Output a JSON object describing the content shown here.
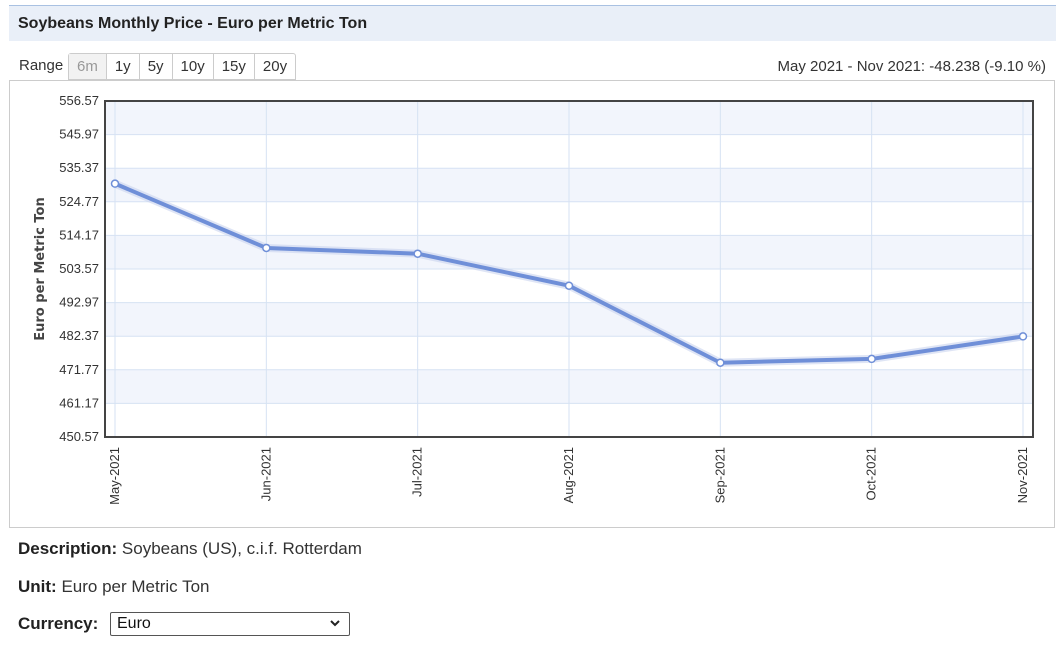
{
  "header": {
    "title": "Soybeans Monthly Price - Euro per Metric Ton"
  },
  "range": {
    "label": "Range",
    "options": [
      "6m",
      "1y",
      "5y",
      "10y",
      "15y",
      "20y"
    ],
    "active_index": 0,
    "summary": "May 2021 - Nov 2021: -48.238 (-9.10 %)"
  },
  "chart_data": {
    "type": "line",
    "ylabel": "Euro per Metric Ton",
    "x": [
      "May-2021",
      "Jun-2021",
      "Jul-2021",
      "Aug-2021",
      "Sep-2021",
      "Oct-2021",
      "Nov-2021"
    ],
    "series": [
      {
        "values": [
          530.5,
          510.2,
          508.4,
          498.3,
          474.0,
          475.2,
          482.3
        ]
      }
    ],
    "yticks": [
      "556.57",
      "545.97",
      "535.37",
      "524.77",
      "514.17",
      "503.57",
      "492.97",
      "482.37",
      "471.77",
      "461.17",
      "450.57"
    ],
    "ylim": [
      450.57,
      556.57
    ],
    "grid": true,
    "line_color": "#6f8fd8"
  },
  "info": {
    "description_label": "Description:",
    "description_value": "Soybeans (US), c.i.f. Rotterdam",
    "unit_label": "Unit:",
    "unit_value": "Euro per Metric Ton",
    "currency_label": "Currency:",
    "currency_value": "Euro",
    "currency_icon": "chevron-down-icon"
  }
}
